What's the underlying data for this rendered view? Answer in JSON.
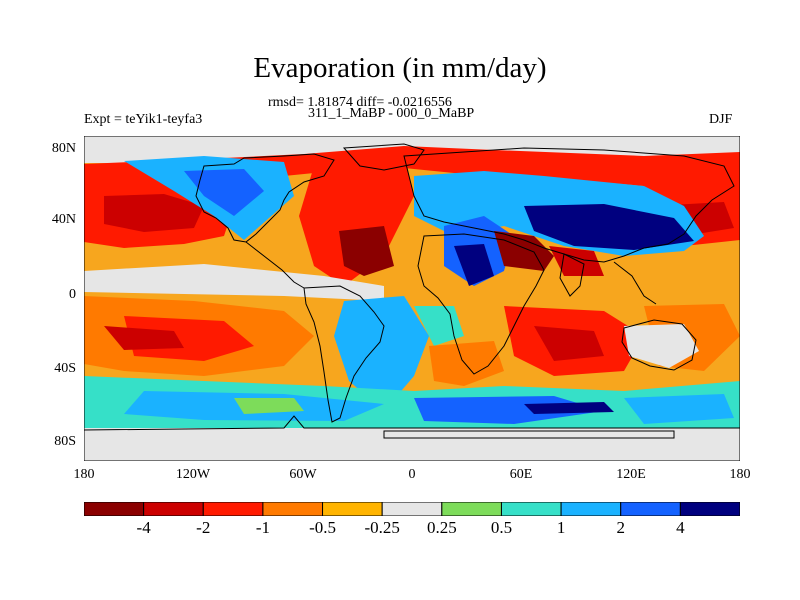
{
  "header": {
    "title": "Evaporation (in mm/day)",
    "stats": "rmsd= 1.81874 diff= -0.0216556",
    "subtitle": "311_1_MaBP - 000_0_MaBP",
    "experiment": "Expt = teYik1-teyfa3",
    "season": "DJF"
  },
  "map": {
    "lat_ticks": [
      "80N",
      "40N",
      "0",
      "40S",
      "80S"
    ],
    "lon_ticks": [
      "180",
      "120W",
      "60W",
      "0",
      "60E",
      "120E",
      "180"
    ]
  },
  "colorbar": {
    "labels": [
      "-4",
      "-2",
      "-1",
      "-0.5",
      "-0.25",
      "0.25",
      "0.5",
      "1",
      "2",
      "4"
    ],
    "colors": [
      "#8b0000",
      "#cc0000",
      "#ff1a00",
      "#ff7a00",
      "#ffb400",
      "#e6e6e6",
      "#7ddc5a",
      "#36e0c8",
      "#1ab2ff",
      "#1462ff",
      "#00007f"
    ]
  }
}
